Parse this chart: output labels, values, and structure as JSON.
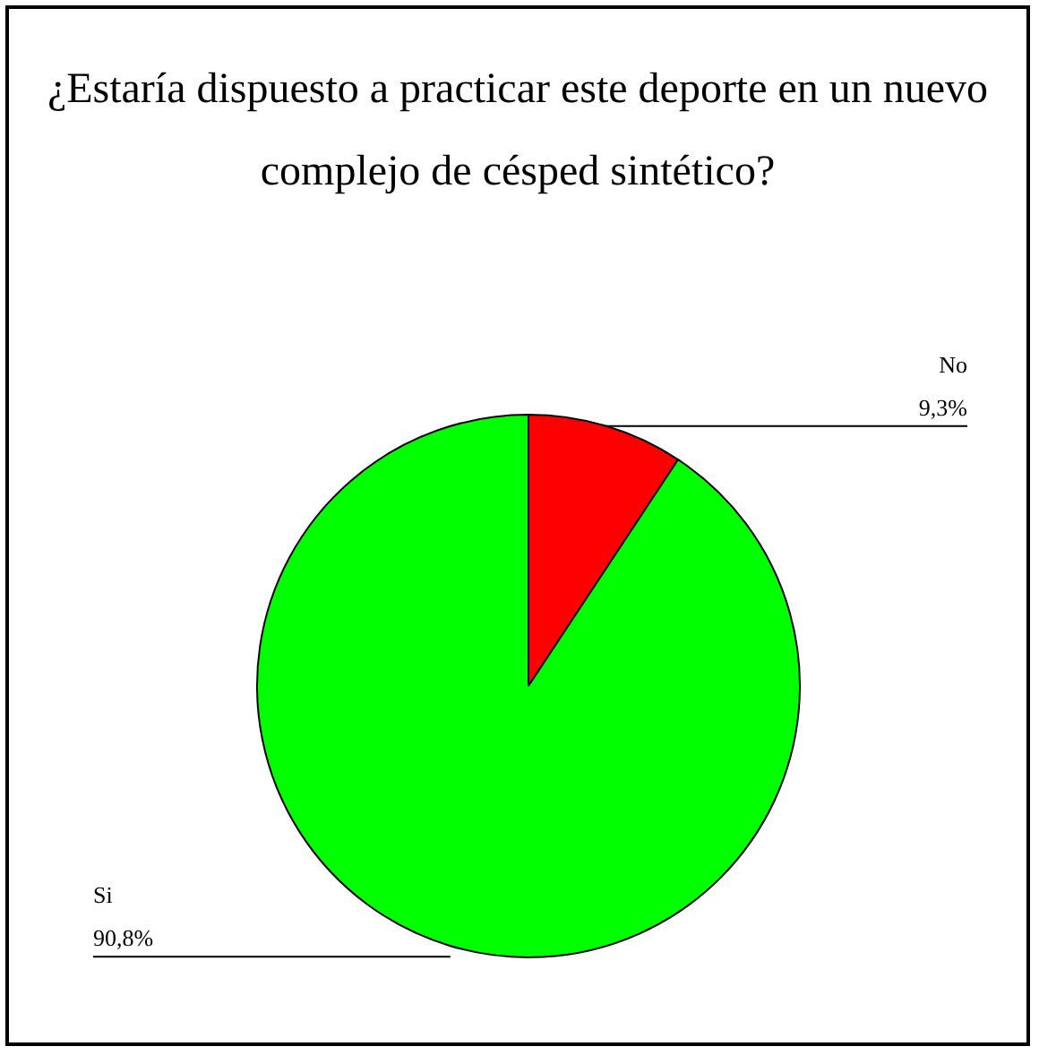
{
  "chart_data": {
    "type": "pie",
    "title": "¿Estaría dispuesto a practicar este deporte en un nuevo complejo de césped sintético?",
    "categories": [
      "No",
      "Si"
    ],
    "values": [
      9.3,
      90.8
    ],
    "colors": [
      "#ff0000",
      "#00ff00"
    ],
    "value_labels": [
      "9,3%",
      "90,8%"
    ]
  }
}
